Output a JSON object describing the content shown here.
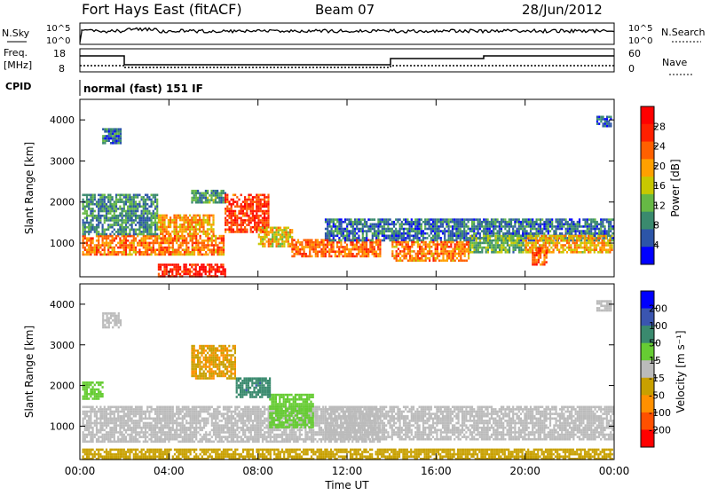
{
  "header": {
    "station": "Fort Hays East (fitACF)",
    "beam": "Beam 07",
    "date": "28/Jun/2012"
  },
  "status_panels": {
    "nsky_label": "N.Sky",
    "nsky_ticks": [
      "10^5",
      "10^0"
    ],
    "nsearch_label": "N.Search",
    "nsearch_ticks": [
      "10^5",
      "10^0"
    ],
    "freq_label": "Freq.",
    "freq_unit": "[MHz]",
    "freq_ticks": [
      "18",
      "8"
    ],
    "nave_label": "Nave",
    "nave_ticks": [
      "60",
      "0"
    ],
    "cpid_label": "CPID",
    "cpid_value": "normal (fast) 151 IF"
  },
  "colors": {
    "power_scale": [
      "#0000ff",
      "#2c55a8",
      "#3a8a6e",
      "#66b845",
      "#c8c800",
      "#ffa000",
      "#ff6000",
      "#ff2000",
      "#ff0000"
    ],
    "velocity_scale": [
      "#0000ff",
      "#3a55b0",
      "#3a8a6e",
      "#66cc33",
      "#bbbbbb",
      "#c8a000",
      "#ff9000",
      "#ff5000",
      "#ff0000"
    ],
    "ground_scatter": "#bbbbbb"
  },
  "chart_data": [
    {
      "type": "heatmap",
      "name": "power",
      "ylabel": "Slant Range [km]",
      "ylim": [
        180,
        4500
      ],
      "xlim": [
        0,
        24
      ],
      "y_ticks": [
        "1000",
        "2000",
        "3000",
        "4000"
      ],
      "colorbar_label": "Power [dB]",
      "colorbar_ticks": [
        "4",
        "8",
        "12",
        "16",
        "20",
        "24",
        "28"
      ],
      "colorbar_range": [
        0,
        32
      ],
      "regions": [
        {
          "t0": 0.1,
          "t1": 6.5,
          "r0": 700,
          "r1": 1200,
          "level": 22
        },
        {
          "t0": 0.1,
          "t1": 3.5,
          "r0": 1200,
          "r1": 2200,
          "level": 9
        },
        {
          "t0": 1.0,
          "t1": 1.8,
          "r0": 3450,
          "r1": 3800,
          "level": 7
        },
        {
          "t0": 3.5,
          "t1": 6.0,
          "r0": 1200,
          "r1": 1700,
          "level": 20
        },
        {
          "t0": 5.0,
          "t1": 6.5,
          "r0": 2000,
          "r1": 2300,
          "level": 10
        },
        {
          "t0": 6.5,
          "t1": 8.5,
          "r0": 1300,
          "r1": 2200,
          "level": 26
        },
        {
          "t0": 8.0,
          "t1": 9.5,
          "r0": 900,
          "r1": 1400,
          "level": 18
        },
        {
          "t0": 9.5,
          "t1": 13.5,
          "r0": 700,
          "r1": 1100,
          "level": 23
        },
        {
          "t0": 11.0,
          "t1": 23.9,
          "r0": 1050,
          "r1": 1600,
          "level": 7
        },
        {
          "t0": 14.0,
          "t1": 17.5,
          "r0": 600,
          "r1": 1050,
          "level": 22
        },
        {
          "t0": 17.5,
          "t1": 20.0,
          "r0": 800,
          "r1": 1200,
          "level": 12
        },
        {
          "t0": 20.0,
          "t1": 23.9,
          "r0": 800,
          "r1": 1200,
          "level": 19
        },
        {
          "t0": 20.3,
          "t1": 21.0,
          "r0": 500,
          "r1": 900,
          "level": 24
        },
        {
          "t0": 3.5,
          "t1": 6.5,
          "r0": 200,
          "r1": 500,
          "level": 28
        },
        {
          "t0": 23.2,
          "t1": 23.9,
          "r0": 3850,
          "r1": 4100,
          "level": 6
        }
      ]
    },
    {
      "type": "heatmap",
      "name": "velocity",
      "ylabel": "Slant Range [km]",
      "ylim": [
        180,
        4500
      ],
      "xlim": [
        0,
        24
      ],
      "y_ticks": [
        "1000",
        "2000",
        "3000",
        "4000"
      ],
      "xlabel": "Time UT",
      "x_ticks": [
        "00:00",
        "04:00",
        "08:00",
        "12:00",
        "16:00",
        "20:00",
        "00:00"
      ],
      "colorbar_label": "Velocity [m s⁻¹]",
      "colorbar_ticks": [
        "200",
        "100",
        "50",
        "15",
        "-15",
        "-50",
        "-100",
        "-200"
      ],
      "colorbar_range": [
        -250,
        250
      ],
      "regions": [
        {
          "t0": 0.1,
          "t1": 13.5,
          "r0": 600,
          "r1": 1500,
          "level": 0
        },
        {
          "t0": 11.0,
          "t1": 23.9,
          "r0": 700,
          "r1": 1500,
          "level": 0
        },
        {
          "t0": 8.5,
          "t1": 10.5,
          "r0": 1000,
          "r1": 1800,
          "level": 60
        },
        {
          "t0": 7.0,
          "t1": 8.5,
          "r0": 1700,
          "r1": 2200,
          "level": 120
        },
        {
          "t0": 5.0,
          "t1": 7.0,
          "r0": 2200,
          "r1": 3000,
          "level": -80
        },
        {
          "t0": 0.1,
          "t1": 1.0,
          "r0": 1700,
          "r1": 2100,
          "level": 60
        },
        {
          "t0": 1.0,
          "t1": 1.8,
          "r0": 3450,
          "r1": 3800,
          "level": 0
        },
        {
          "t0": 23.2,
          "t1": 23.9,
          "r0": 3850,
          "r1": 4100,
          "level": 0
        },
        {
          "t0": 0.1,
          "t1": 23.9,
          "r0": 180,
          "r1": 450,
          "level": -60
        }
      ]
    }
  ]
}
